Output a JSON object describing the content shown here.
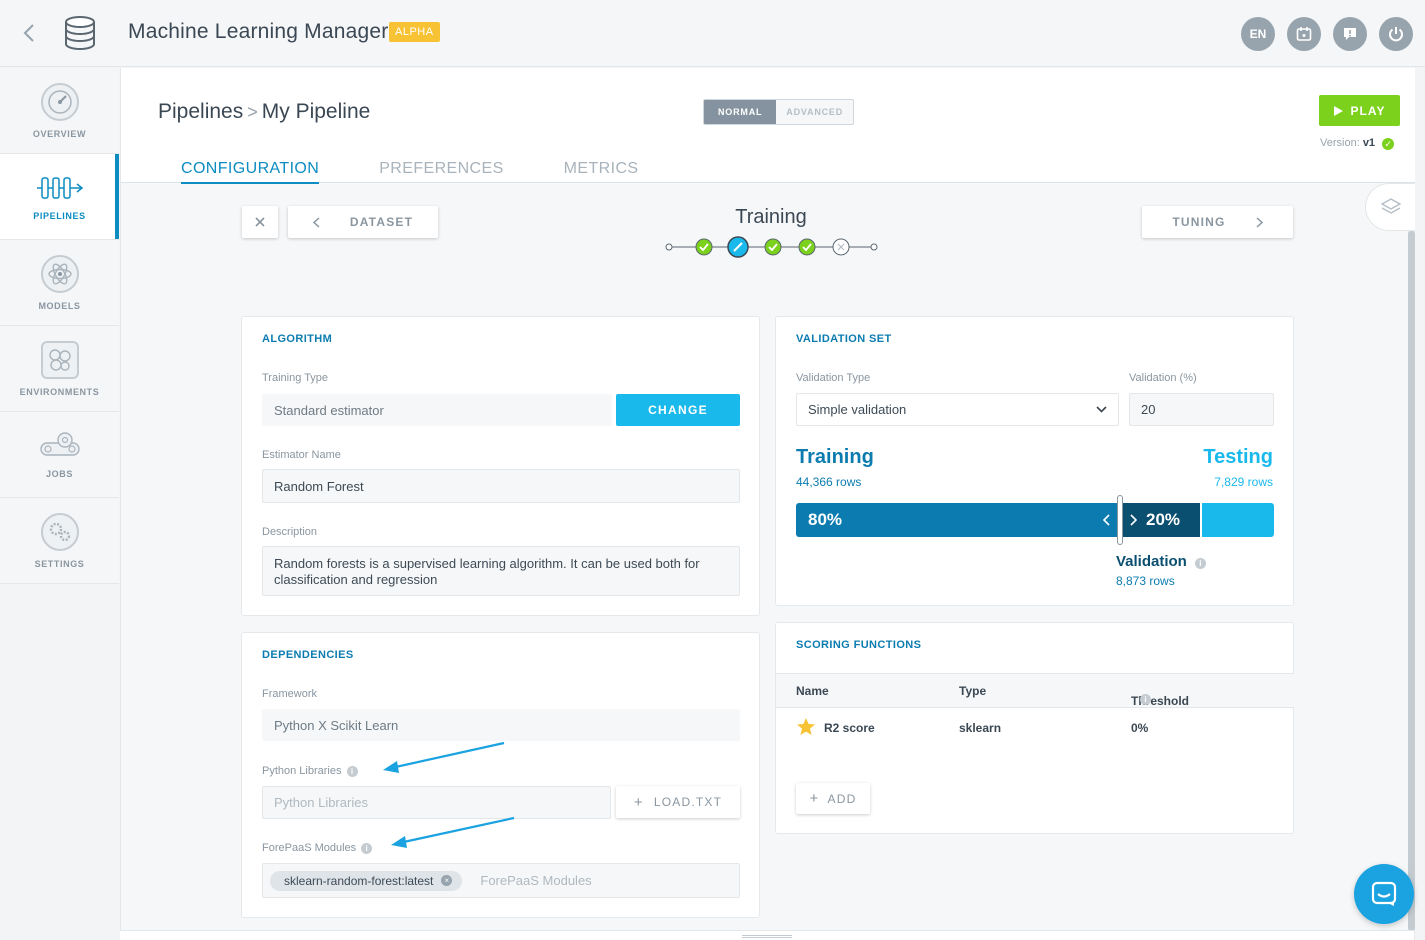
{
  "app": {
    "title": "Machine Learning Manager",
    "badge": "ALPHA",
    "top_buttons": [
      {
        "label": "EN",
        "icon": "language"
      },
      {
        "label": "",
        "icon": "calendar-icon"
      },
      {
        "label": "",
        "icon": "feedback-icon"
      },
      {
        "label": "",
        "icon": "power-icon"
      }
    ]
  },
  "sidebar": {
    "items": [
      {
        "label": "OVERVIEW",
        "icon": "gauge-icon",
        "active": false
      },
      {
        "label": "PIPELINES",
        "icon": "pipeline-icon",
        "active": true
      },
      {
        "label": "MODELS",
        "icon": "atom-icon",
        "active": false
      },
      {
        "label": "ENVIRONMENTS",
        "icon": "cells-icon",
        "active": false
      },
      {
        "label": "JOBS",
        "icon": "conveyor-icon",
        "active": false
      },
      {
        "label": "SETTINGS",
        "icon": "gears-icon",
        "active": false
      }
    ]
  },
  "header": {
    "breadcrumb_root": "Pipelines",
    "breadcrumb_sep": ">",
    "breadcrumb_current": "My Pipeline",
    "mode_normal": "NORMAL",
    "mode_advanced": "ADVANCED",
    "play_label": "PLAY",
    "version_label": "Version:",
    "version_value": "v1",
    "tabs": [
      {
        "label": "CONFIGURATION",
        "active": true
      },
      {
        "label": "PREFERENCES",
        "active": false
      },
      {
        "label": "METRICS",
        "active": false
      }
    ]
  },
  "stepnav": {
    "prev_label": "DATASET",
    "next_label": "TUNING",
    "current_step": "Training",
    "steps": [
      "start",
      "done",
      "current",
      "done",
      "done",
      "skipped",
      "end"
    ]
  },
  "algorithm": {
    "title": "ALGORITHM",
    "training_type_label": "Training Type",
    "training_type_value": "Standard estimator",
    "change_label": "CHANGE",
    "estimator_label": "Estimator Name",
    "estimator_value": "Random Forest",
    "description_label": "Description",
    "description_value": "Random forests is a supervised learning algorithm. It can be used both for classification and regression"
  },
  "dependencies": {
    "title": "DEPENDENCIES",
    "framework_label": "Framework",
    "framework_value": "Python X Scikit Learn",
    "python_libraries_label": "Python Libraries",
    "python_libraries_placeholder": "Python Libraries",
    "load_label": "LOAD.TXT",
    "modules_label": "ForePaaS Modules",
    "modules_chip": "sklearn-random-forest:latest",
    "modules_placeholder": "ForePaaS Modules"
  },
  "validation": {
    "title": "VALIDATION SET",
    "type_label": "Validation Type",
    "type_value": "Simple validation",
    "percent_label": "Validation (%)",
    "percent_value": "20",
    "training_title": "Training",
    "training_rows": "44,366 rows",
    "testing_title": "Testing",
    "testing_rows": "7,829 rows",
    "training_pct": "80%",
    "validation_pct": "20%",
    "validation_title": "Validation",
    "validation_rows": "8,873 rows"
  },
  "scoring": {
    "title": "SCORING FUNCTIONS",
    "columns": [
      "Name",
      "Type",
      "Threshold"
    ],
    "rows": [
      {
        "name": "R2 score",
        "type": "sklearn",
        "threshold": "0%"
      }
    ],
    "add_label": "ADD"
  },
  "colors": {
    "accent": "#0c8cc1",
    "cyan": "#1ab9ec",
    "green": "#7cd11c",
    "badge": "#f7c234"
  }
}
